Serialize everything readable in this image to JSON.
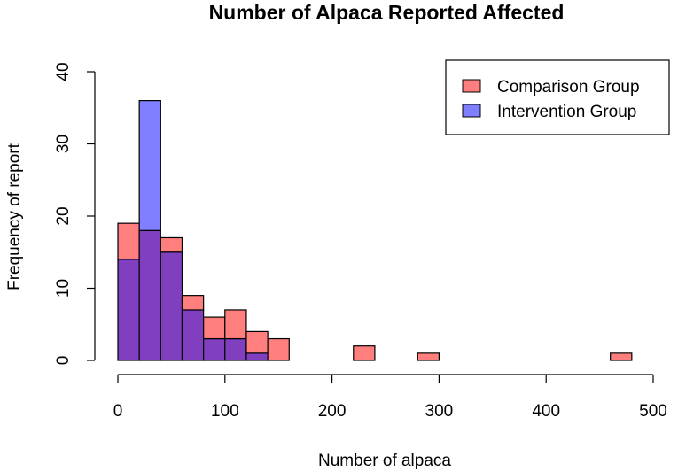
{
  "chart_data": {
    "type": "bar",
    "title": "Number of Alpaca Reported Affected",
    "xlabel": "Number of alpaca",
    "ylabel": "Frequency of report",
    "xlim": [
      0,
      500
    ],
    "ylim": [
      0,
      40
    ],
    "x_ticks": [
      0,
      100,
      200,
      300,
      400,
      500
    ],
    "y_ticks": [
      0,
      10,
      20,
      30,
      40
    ],
    "bin_width": 20,
    "bins": [
      [
        0,
        20
      ],
      [
        20,
        40
      ],
      [
        40,
        60
      ],
      [
        60,
        80
      ],
      [
        80,
        100
      ],
      [
        100,
        120
      ],
      [
        120,
        140
      ],
      [
        140,
        160
      ],
      [
        160,
        180
      ],
      [
        180,
        200
      ],
      [
        200,
        220
      ],
      [
        220,
        240
      ],
      [
        240,
        260
      ],
      [
        260,
        280
      ],
      [
        280,
        300
      ],
      [
        300,
        320
      ],
      [
        320,
        340
      ],
      [
        340,
        360
      ],
      [
        360,
        380
      ],
      [
        380,
        400
      ],
      [
        400,
        420
      ],
      [
        420,
        440
      ],
      [
        440,
        460
      ],
      [
        460,
        480
      ]
    ],
    "series": [
      {
        "name": "Comparison Group",
        "color": "#ff7f7f",
        "values": [
          19,
          18,
          17,
          9,
          6,
          7,
          4,
          3,
          0,
          0,
          0,
          2,
          0,
          0,
          1,
          0,
          0,
          0,
          0,
          0,
          0,
          0,
          0,
          1
        ]
      },
      {
        "name": "Intervention Group",
        "color": "#7f7fff",
        "values": [
          14,
          36,
          15,
          7,
          3,
          3,
          1,
          0,
          0,
          0,
          0,
          0,
          0,
          0,
          0,
          0,
          0,
          0,
          0,
          0,
          0,
          0,
          0,
          0
        ]
      }
    ],
    "overlap_color": "#7f3fbf",
    "grid": false,
    "legend": "top-right"
  }
}
